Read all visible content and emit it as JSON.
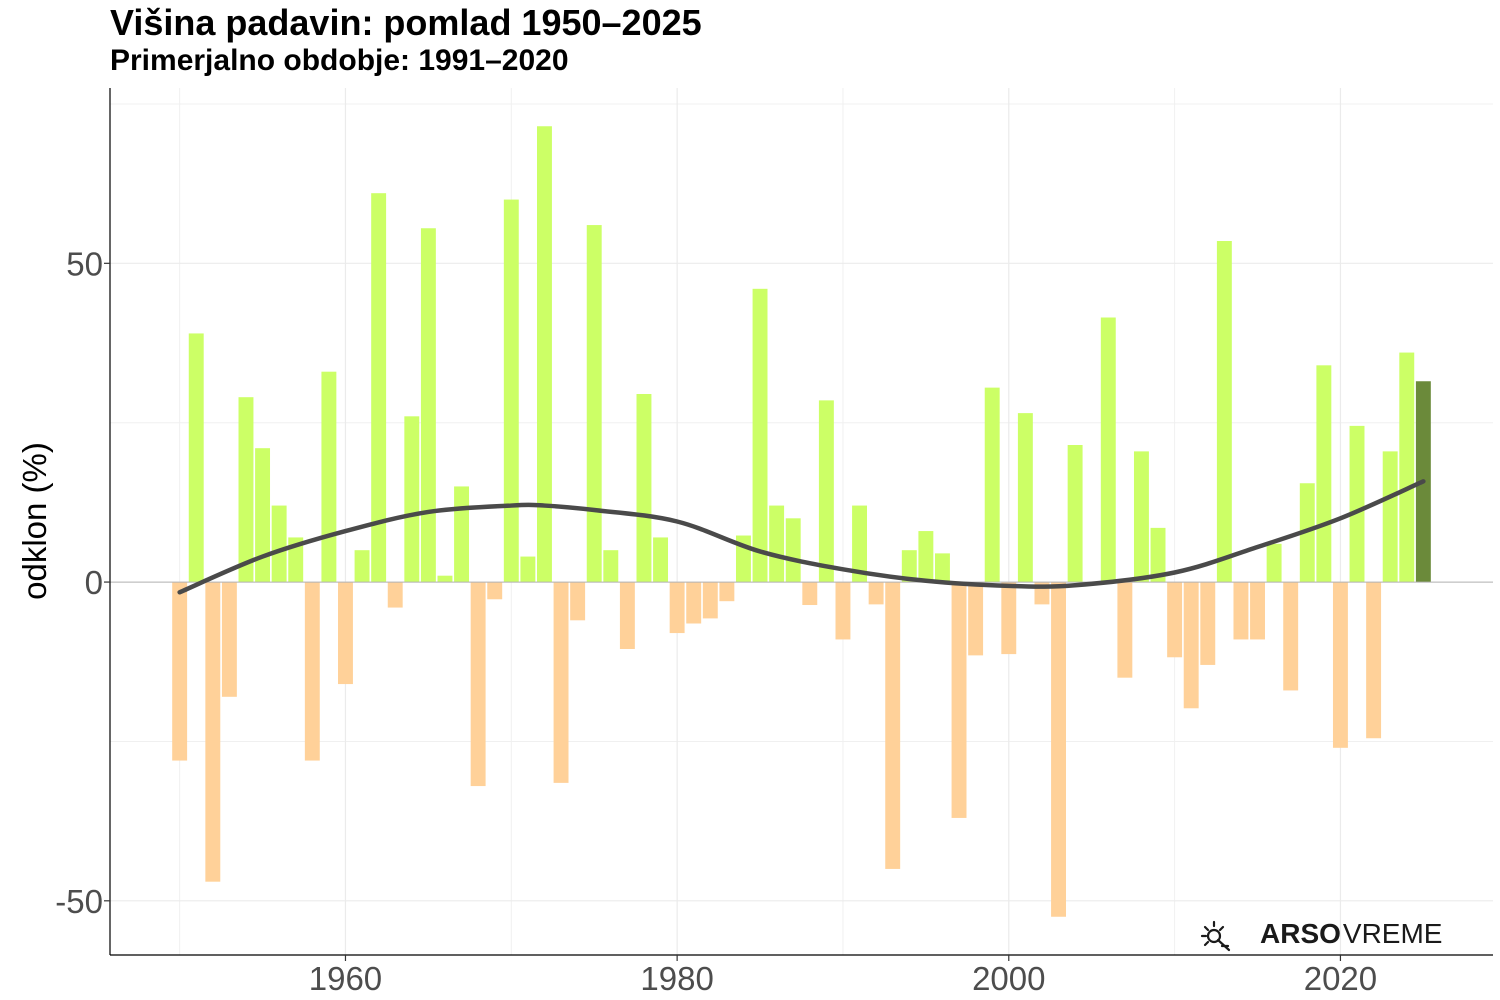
{
  "title": "Višina padavin: pomlad 1950–2025",
  "subtitle": "Primerjalno obdobje: 1991–2020",
  "logo": {
    "arso": "ARSO",
    "vreme": "VREME",
    "icon": "sun-umbrella-icon"
  },
  "chart_data": {
    "type": "bar",
    "ylabel": "odklon (%)",
    "xlabel": "",
    "xlim": [
      1945.8,
      2029.2
    ],
    "ylim": [
      -58.5,
      77.5
    ],
    "x_ticks": [
      1960,
      1980,
      2000,
      2020
    ],
    "y_ticks": [
      -50,
      0,
      50
    ],
    "grid": true,
    "colors": {
      "positive": "#ccff66",
      "negative": "#ffd199",
      "highlight": "#6b8a3a",
      "trend": "#4a4a4a"
    },
    "highlight_year": 2025,
    "years": [
      1950,
      1951,
      1952,
      1953,
      1954,
      1955,
      1956,
      1957,
      1958,
      1959,
      1960,
      1961,
      1962,
      1963,
      1964,
      1965,
      1966,
      1967,
      1968,
      1969,
      1970,
      1971,
      1972,
      1973,
      1974,
      1975,
      1976,
      1977,
      1978,
      1979,
      1980,
      1981,
      1982,
      1983,
      1984,
      1985,
      1986,
      1987,
      1988,
      1989,
      1990,
      1991,
      1992,
      1993,
      1994,
      1995,
      1996,
      1997,
      1998,
      1999,
      2000,
      2001,
      2002,
      2003,
      2004,
      2005,
      2006,
      2007,
      2008,
      2009,
      2010,
      2011,
      2012,
      2013,
      2014,
      2015,
      2016,
      2017,
      2018,
      2019,
      2020,
      2021,
      2022,
      2023,
      2024,
      2025
    ],
    "values": [
      -28,
      39,
      -47,
      -18,
      29,
      21,
      12,
      7,
      -28,
      33,
      -16,
      5,
      61,
      -4,
      26,
      55.5,
      1,
      15,
      -32,
      -2.7,
      60,
      4,
      71.5,
      -31.5,
      -6,
      56,
      5,
      -10.5,
      29.5,
      7,
      -8,
      -6.5,
      -5.7,
      -3,
      7.3,
      46,
      12,
      10,
      -3.6,
      28.5,
      -9,
      12,
      -3.5,
      -45,
      5,
      8,
      4.5,
      -37,
      -11.5,
      30.5,
      -11.3,
      26.5,
      -3.5,
      -52.5,
      21.5,
      -0.5,
      41.5,
      -15,
      20.5,
      8.5,
      -11.8,
      -19.8,
      -13,
      53.5,
      -9,
      -9,
      6,
      -17,
      15.5,
      34,
      -26,
      24.5,
      -24.5,
      20.5,
      36,
      31.5
    ],
    "trend": [
      [
        1950,
        -1.6
      ],
      [
        1955,
        4
      ],
      [
        1960,
        8
      ],
      [
        1965,
        11
      ],
      [
        1970,
        12
      ],
      [
        1972,
        12
      ],
      [
        1975,
        11.3
      ],
      [
        1980,
        9.5
      ],
      [
        1985,
        4.8
      ],
      [
        1990,
        2
      ],
      [
        1995,
        0.2
      ],
      [
        2000,
        -0.6
      ],
      [
        2004,
        -0.5
      ],
      [
        2010,
        1.5
      ],
      [
        2015,
        5.5
      ],
      [
        2020,
        10
      ],
      [
        2025,
        15.8
      ]
    ]
  }
}
